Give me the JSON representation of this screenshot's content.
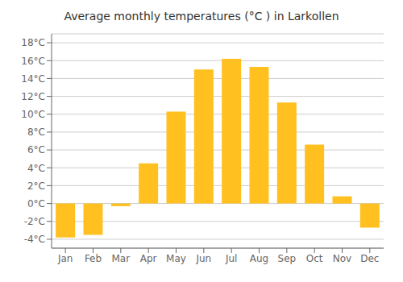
{
  "chart_data": {
    "type": "bar",
    "title": "Average monthly temperatures (°C ) in Larkollen",
    "categories": [
      "Jan",
      "Feb",
      "Mar",
      "Apr",
      "May",
      "Jun",
      "Jul",
      "Aug",
      "Sep",
      "Oct",
      "Nov",
      "Dec"
    ],
    "values": [
      -3.8,
      -3.5,
      -0.3,
      4.5,
      10.3,
      15.0,
      16.2,
      15.3,
      11.3,
      6.6,
      0.8,
      -2.7
    ],
    "color": "#FFC020",
    "ylim": [
      -5,
      19
    ],
    "yticks": [
      {
        "value": -4,
        "label": "-4°C"
      },
      {
        "value": -2,
        "label": "-2°C"
      },
      {
        "value": 0,
        "label": "0°C"
      },
      {
        "value": 2,
        "label": "2°C"
      },
      {
        "value": 4,
        "label": "4°C"
      },
      {
        "value": 6,
        "label": "6°C"
      },
      {
        "value": 8,
        "label": "8°C"
      },
      {
        "value": 10,
        "label": "10°C"
      },
      {
        "value": 12,
        "label": "12°C"
      },
      {
        "value": 14,
        "label": "14°C"
      },
      {
        "value": 16,
        "label": "16°C"
      },
      {
        "value": 18,
        "label": "18°C"
      }
    ],
    "grid": true
  }
}
